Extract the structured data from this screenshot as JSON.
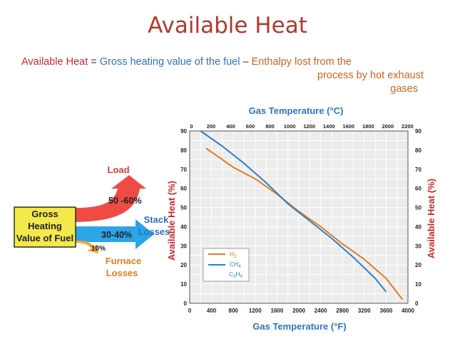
{
  "slide": {
    "title": "Available Heat",
    "equation": {
      "term1": "Available Heat",
      "equals": "=",
      "term2": "Gross heating value of the fuel",
      "minus": "–",
      "term3a": "Enthalpy lost from the",
      "term3b": "process by hot exhaust",
      "term3c": "gases"
    }
  },
  "diagram": {
    "source_label_1": "Gross",
    "source_label_2": "Heating",
    "source_label_3": "Value of Fuel",
    "load_label": "Load",
    "load_pct": "50 -60%",
    "stack_label_1": "Stack",
    "stack_label_2": "Losses",
    "stack_pct": "30-40%",
    "furnace_label_1": "Furnace",
    "furnace_label_2": "Losses",
    "furnace_pct": "10%"
  },
  "colors": {
    "title": "#b03a2e",
    "h2": "#e07b22",
    "ch4": "#2f7fc8",
    "load_arrow": "#ef4b45",
    "stack_arrow": "#2aa6e6",
    "furnace_arrow": "#f2a93b",
    "source_box": "#f4e94a",
    "plot_bg": "#ececec",
    "axis_label": "#d1262c"
  },
  "chart_data": {
    "type": "line",
    "title": "Gas Temperature (°C)",
    "xlabel": "Gas Temperature (°F)",
    "ylabel": "Available Heat (%)",
    "ylabel_right": "Available Heat (%)",
    "xlim": [
      0,
      4000
    ],
    "ylim": [
      0,
      90
    ],
    "x_ticks": [
      "0",
      "400",
      "800",
      "1200",
      "1600",
      "2000",
      "2400",
      "2800",
      "3200",
      "3600",
      "4000"
    ],
    "y_ticks": [
      "0",
      "10",
      "20",
      "30",
      "40",
      "50",
      "60",
      "70",
      "80",
      "90"
    ],
    "top_axis_ticks": [
      "0",
      "200",
      "400",
      "600",
      "800",
      "1000",
      "1200",
      "1400",
      "1600",
      "1800",
      "2000",
      "2200"
    ],
    "grid": true,
    "legend_position": "bottom-left",
    "series": [
      {
        "name": "H2",
        "color": "#e07b22",
        "x": [
          300,
          800,
          1200,
          1600,
          2000,
          2400,
          2800,
          3200,
          3600,
          3900
        ],
        "y": [
          81,
          71,
          65,
          57,
          48,
          40,
          31,
          23,
          13,
          2
        ]
      },
      {
        "name": "CH4",
        "color": "#2f7fc8",
        "x": [
          200,
          600,
          1000,
          1400,
          1800,
          2200,
          2600,
          3000,
          3400,
          3600
        ],
        "y": [
          90,
          82,
          73,
          63,
          52,
          43,
          34,
          24,
          13,
          6
        ]
      }
    ],
    "legend_extra": "C3H8"
  }
}
